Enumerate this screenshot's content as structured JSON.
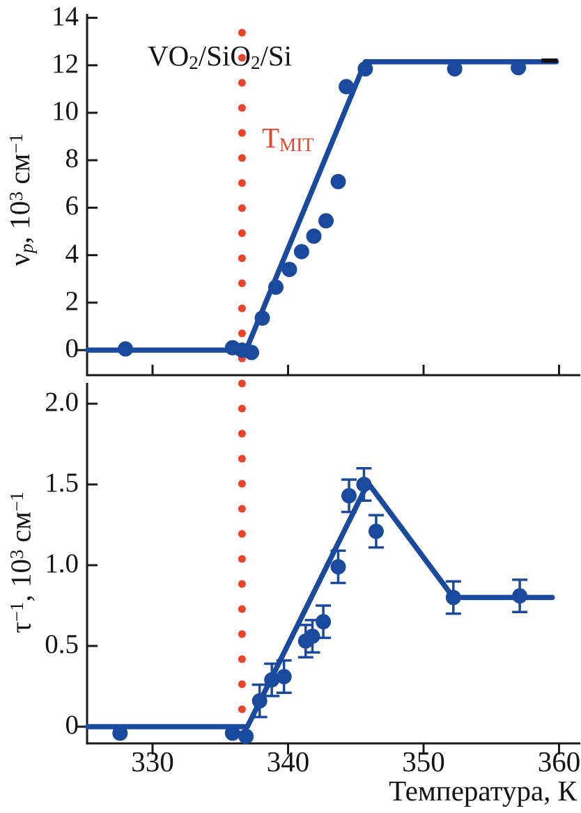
{
  "figure": {
    "title_text": "VO2/SiO2/Si",
    "title_segments": [
      {
        "t": "VO"
      },
      {
        "t": "2",
        "s": "sub"
      },
      {
        "t": "/SiO"
      },
      {
        "t": "2",
        "s": "sub"
      },
      {
        "t": "/Si"
      }
    ]
  },
  "colors": {
    "data_blue": "#1a4a9e",
    "accent_red": "#e9442b",
    "axis_black": "#1a1a1a"
  },
  "x_axis": {
    "label": "Температура, К",
    "ticks": [
      330,
      340,
      350,
      360
    ],
    "range_k": [
      325.2,
      361.5
    ]
  },
  "annotations": {
    "t_mit_label": {
      "text": "TMIT",
      "segments": [
        {
          "t": "T"
        },
        {
          "t": "MIT",
          "s": "sub"
        }
      ],
      "color": "#e9442b"
    },
    "t_mit_line": {
      "temperature_k": 336.6,
      "style": "dotted",
      "color": "#e9442b"
    },
    "plateau_dash": {
      "t_start_k": 358.7,
      "t_end_k": 359.9,
      "value": 12.2,
      "color": "#111111"
    }
  },
  "chart_data": [
    {
      "id": "top-panel",
      "type": "scatter",
      "title": "VO2/SiO2/Si",
      "xlabel": "Температура, К",
      "ylabel": "νp, 10³ см⁻¹",
      "ylabel_segments": [
        {
          "t": "ν"
        },
        {
          "t": "p",
          "s": "subi"
        },
        {
          "t": ", 10"
        },
        {
          "t": "3",
          "s": "sup"
        },
        {
          "t": " см"
        },
        {
          "t": "−1",
          "s": "sup"
        }
      ],
      "yticks": [
        0,
        2,
        4,
        6,
        8,
        10,
        12,
        14
      ],
      "ytick_labels": [
        "0",
        "2",
        "4",
        "6",
        "8",
        "10",
        "12",
        "14"
      ],
      "ylim": [
        -1.05,
        14.2
      ],
      "xlim": [
        325.2,
        361.5
      ],
      "grid": false,
      "fit_line": [
        [
          325.2,
          0
        ],
        [
          336.9,
          0
        ],
        [
          345.7,
          12.15
        ],
        [
          359.8,
          12.15
        ]
      ],
      "points": [
        [
          328.0,
          0.05
        ],
        [
          335.9,
          0.1
        ],
        [
          336.6,
          0.0
        ],
        [
          337.3,
          -0.1
        ],
        [
          338.1,
          1.35
        ],
        [
          339.1,
          2.65
        ],
        [
          340.1,
          3.4
        ],
        [
          341.0,
          4.15
        ],
        [
          341.9,
          4.8
        ],
        [
          342.8,
          5.45
        ],
        [
          343.7,
          7.1
        ],
        [
          344.3,
          11.1
        ],
        [
          345.7,
          11.85
        ],
        [
          352.3,
          11.85
        ],
        [
          357.0,
          11.9
        ]
      ]
    },
    {
      "id": "bottom-panel",
      "type": "scatter",
      "title": "",
      "xlabel": "Температура, К",
      "ylabel": "τ⁻¹, 10³ см⁻¹",
      "ylabel_segments": [
        {
          "t": "τ"
        },
        {
          "t": "−1",
          "s": "sup"
        },
        {
          "t": ", 10"
        },
        {
          "t": "3",
          "s": "sup"
        },
        {
          "t": " см"
        },
        {
          "t": "−1",
          "s": "sup"
        }
      ],
      "yticks": [
        0,
        0.5,
        1.0,
        1.5,
        2.0
      ],
      "ytick_labels": [
        "0",
        "0.5",
        "1.0",
        "1.5",
        "2.0"
      ],
      "ylim": [
        -0.1,
        2.13
      ],
      "xlim": [
        325.2,
        361.5
      ],
      "grid": false,
      "fit_line": [
        [
          325.2,
          0
        ],
        [
          337.0,
          0
        ],
        [
          345.9,
          1.51
        ],
        [
          352.2,
          0.8
        ],
        [
          359.5,
          0.8
        ]
      ],
      "points": [
        [
          327.6,
          -0.04,
          0
        ],
        [
          335.9,
          -0.04,
          0
        ],
        [
          336.9,
          -0.06,
          0
        ],
        [
          337.9,
          0.16,
          0.1
        ],
        [
          338.8,
          0.29,
          0.1
        ],
        [
          339.7,
          0.31,
          0.1
        ],
        [
          341.3,
          0.53,
          0.1
        ],
        [
          341.8,
          0.56,
          0.1
        ],
        [
          342.6,
          0.65,
          0.1
        ],
        [
          343.7,
          0.99,
          0.1
        ],
        [
          344.5,
          1.43,
          0.1
        ],
        [
          345.6,
          1.5,
          0.1
        ],
        [
          346.5,
          1.21,
          0.1
        ],
        [
          352.2,
          0.8,
          0.1
        ],
        [
          357.1,
          0.81,
          0.1
        ]
      ]
    }
  ]
}
